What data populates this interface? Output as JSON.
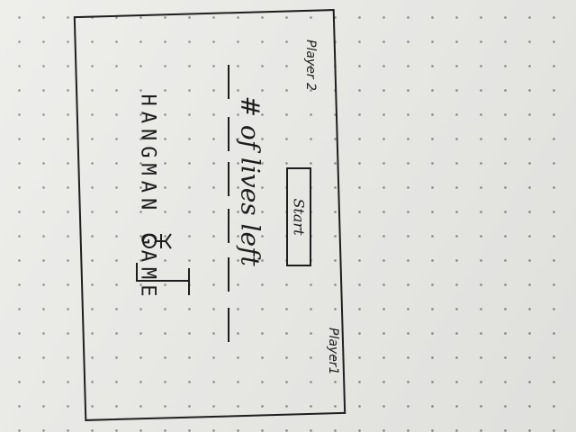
{
  "title": "HANGMAN GAME",
  "lives_label": "# of lives left",
  "start_button": "Start",
  "player_1": "Player1",
  "player_2": "Player 2",
  "word_blanks": [
    "_",
    "_",
    "_",
    "_",
    "_",
    "_"
  ],
  "icons": {
    "gallows": "gallows-icon"
  }
}
